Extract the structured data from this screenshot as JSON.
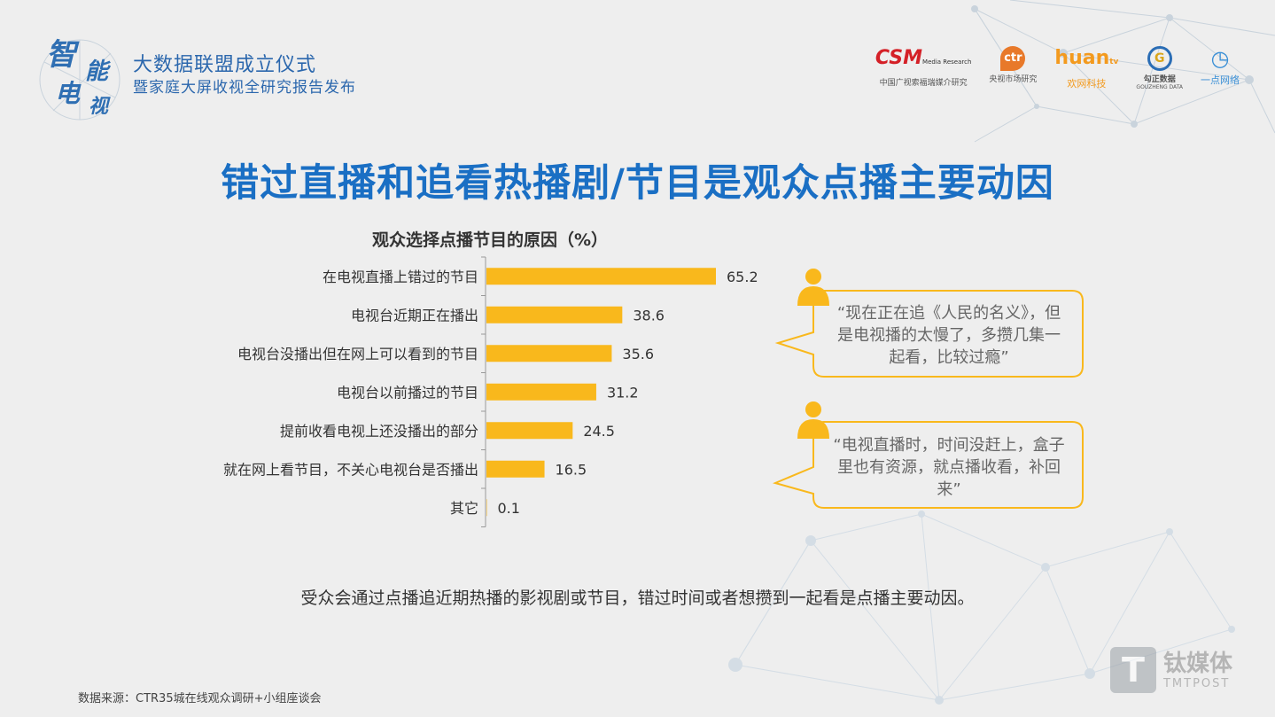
{
  "header": {
    "brand_chars": [
      "智",
      "能",
      "电",
      "视"
    ],
    "line1": "大数据联盟成立仪式",
    "line2": "暨家庭大屏收视全研究报告发布"
  },
  "partners": [
    {
      "mark": "CSM",
      "mark_small": "Media Research",
      "sub": "中国广视索福瑞媒介研究",
      "color": "#d42027"
    },
    {
      "mark": "ctr",
      "sub": "央视市场研究",
      "color": "#e8792a"
    },
    {
      "mark": "huan",
      "mark_small": "tv",
      "sub": "欢网科技",
      "color": "#f39a1e"
    },
    {
      "mark": "G",
      "sub": "勾正数据",
      "sub_en": "GOUZHENG DATA",
      "color": "#2a6db5"
    },
    {
      "mark": "◷",
      "sub": "一点网络",
      "color": "#3a8fd6"
    }
  ],
  "title": "错过直播和追看热播剧/节目是观众点播主要动因",
  "chart_data": {
    "type": "bar",
    "orientation": "horizontal",
    "title": "观众选择点播节目的原因（%）",
    "categories": [
      "在电视直播上错过的节目",
      "电视台近期正在播出",
      "电视台没播出但在网上可以看到的节目",
      "电视台以前播过的节目",
      "提前收看电视上还没播出的部分",
      "就在网上看节目，不关心电视台是否播出",
      "其它"
    ],
    "values": [
      65.2,
      38.6,
      35.6,
      31.2,
      24.5,
      16.5,
      0.1
    ],
    "bar_color": "#f9b81c",
    "xlim": [
      0,
      100
    ]
  },
  "quotes": [
    {
      "text": "“现在正在追《人民的名义》，但是电视播的太慢了，多攒几集一起看，比较过瘾”"
    },
    {
      "text": "“电视直播时，时间没赶上，盒子里也有资源，就点播收看，补回来”"
    }
  ],
  "quote_color": "#f9b81c",
  "summary": "受众会通过点播追近期热播的影视剧或节目，错过时间或者想攒到一起看是点播主要动因。",
  "source": "数据来源：CTR35城在线观众调研+小组座谈会",
  "watermark": {
    "cn": "钛媒体",
    "en": "TMTPOST",
    "mark": "T"
  }
}
